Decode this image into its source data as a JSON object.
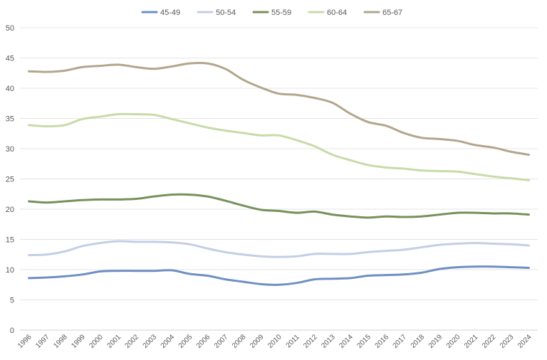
{
  "chart_data": {
    "type": "line",
    "title": "",
    "xlabel": "",
    "ylabel": "",
    "ylim": [
      0,
      50
    ],
    "yticks": [
      0,
      5,
      10,
      15,
      20,
      25,
      30,
      35,
      40,
      45,
      50
    ],
    "grid": "horizontal",
    "legend_position": "top",
    "categories": [
      "1996",
      "1997",
      "1998",
      "1999",
      "2000",
      "2001",
      "2002",
      "2003",
      "2004",
      "2005",
      "2006",
      "2007",
      "2008",
      "2009",
      "2010",
      "2011",
      "2012",
      "2013",
      "2014",
      "2015",
      "2016",
      "2017",
      "2018",
      "2019",
      "2020",
      "2021",
      "2022",
      "2023",
      "2024"
    ],
    "series": [
      {
        "name": "45-49",
        "color": "#6e8fc2",
        "values": [
          8.6,
          8.7,
          8.9,
          9.2,
          9.7,
          9.8,
          9.8,
          9.8,
          9.9,
          9.3,
          9.0,
          8.4,
          8.0,
          7.6,
          7.5,
          7.8,
          8.4,
          8.5,
          8.6,
          9.0,
          9.1,
          9.2,
          9.5,
          10.1,
          10.4,
          10.5,
          10.5,
          10.4,
          10.3
        ]
      },
      {
        "name": "50-54",
        "color": "#c3cfe3",
        "values": [
          12.4,
          12.5,
          13.0,
          13.9,
          14.4,
          14.7,
          14.6,
          14.6,
          14.5,
          14.2,
          13.5,
          12.9,
          12.5,
          12.2,
          12.1,
          12.2,
          12.6,
          12.6,
          12.6,
          12.9,
          13.1,
          13.3,
          13.7,
          14.1,
          14.3,
          14.4,
          14.3,
          14.2,
          14.0
        ]
      },
      {
        "name": "55-59",
        "color": "#76915a",
        "values": [
          21.3,
          21.1,
          21.3,
          21.5,
          21.6,
          21.6,
          21.7,
          22.1,
          22.4,
          22.4,
          22.1,
          21.4,
          20.6,
          19.9,
          19.7,
          19.4,
          19.6,
          19.1,
          18.8,
          18.6,
          18.8,
          18.7,
          18.8,
          19.1,
          19.4,
          19.4,
          19.3,
          19.3,
          19.1
        ]
      },
      {
        "name": "60-64",
        "color": "#c7dba9",
        "values": [
          33.9,
          33.7,
          33.9,
          34.9,
          35.3,
          35.7,
          35.7,
          35.6,
          34.9,
          34.2,
          33.5,
          33.0,
          32.6,
          32.2,
          32.2,
          31.4,
          30.4,
          29.0,
          28.1,
          27.3,
          26.9,
          26.7,
          26.4,
          26.3,
          26.2,
          25.8,
          25.4,
          25.1,
          24.8
        ]
      },
      {
        "name": "65-67",
        "color": "#b2a68c",
        "values": [
          42.8,
          42.7,
          42.9,
          43.5,
          43.7,
          43.9,
          43.5,
          43.2,
          43.6,
          44.1,
          44.1,
          43.2,
          41.4,
          40.1,
          39.1,
          38.9,
          38.4,
          37.6,
          35.8,
          34.4,
          33.8,
          32.6,
          31.8,
          31.6,
          31.3,
          30.6,
          30.2,
          29.5,
          29.0
        ]
      }
    ]
  }
}
